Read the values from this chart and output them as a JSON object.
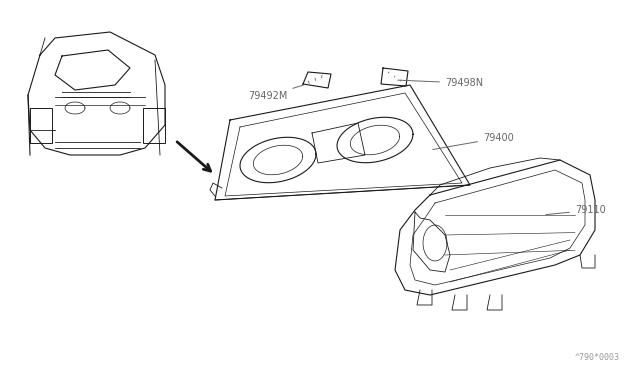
{
  "bg_color": "#ffffff",
  "line_color": "#1a1a1a",
  "label_color": "#666666",
  "fig_width": 6.4,
  "fig_height": 3.72,
  "dpi": 100,
  "footer_text": "^790*0003"
}
